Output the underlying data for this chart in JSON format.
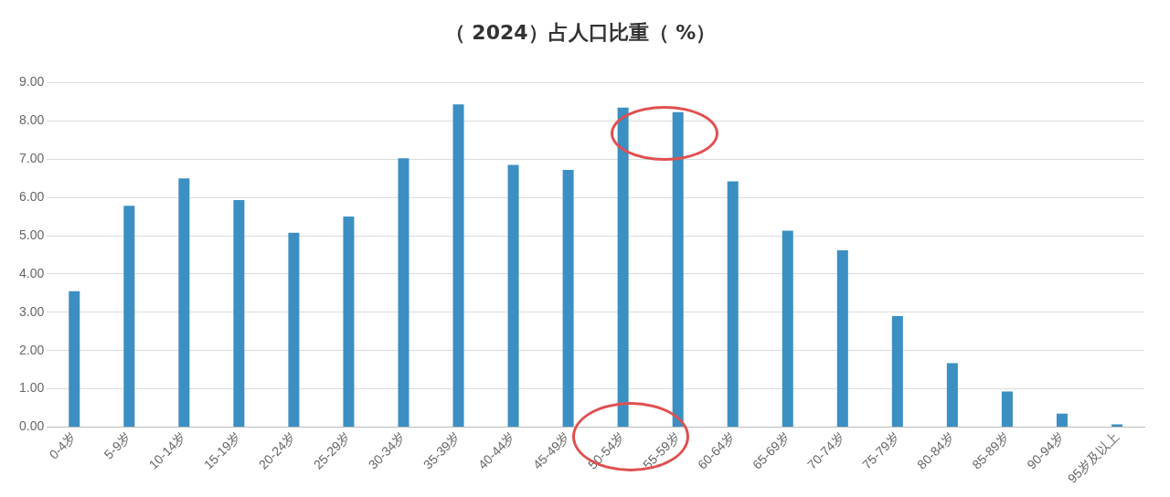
{
  "chart_data": {
    "type": "bar",
    "title": "（ 2024）占人口比重（ %）",
    "categories": [
      "0-4岁",
      "5-9岁",
      "10-14岁",
      "15-19岁",
      "20-24岁",
      "25-29岁",
      "30-34岁",
      "35-39岁",
      "40-44岁",
      "45-49岁",
      "50-54岁",
      "55-59岁",
      "60-64岁",
      "65-69岁",
      "70-74岁",
      "75-79岁",
      "80-84岁",
      "85-89岁",
      "90-94岁",
      "95岁及以上"
    ],
    "values": [
      3.55,
      5.78,
      6.5,
      5.93,
      5.08,
      5.5,
      7.02,
      8.43,
      6.85,
      6.72,
      8.35,
      8.23,
      6.42,
      5.13,
      4.62,
      2.9,
      1.67,
      0.93,
      0.35,
      0.07
    ],
    "color": "#3b8fc2",
    "ylim": [
      0,
      9
    ],
    "yticks": [
      {
        "value": 0,
        "label": "0.00"
      },
      {
        "value": 1,
        "label": "1.00"
      },
      {
        "value": 2,
        "label": "2.00"
      },
      {
        "value": 3,
        "label": "3.00"
      },
      {
        "value": 4,
        "label": "4.00"
      },
      {
        "value": 5,
        "label": "5.00"
      },
      {
        "value": 6,
        "label": "6.00"
      },
      {
        "value": 7,
        "label": "7.00"
      },
      {
        "value": 8,
        "label": "8.00"
      },
      {
        "value": 9,
        "label": "9.00"
      }
    ],
    "grid": "y"
  }
}
